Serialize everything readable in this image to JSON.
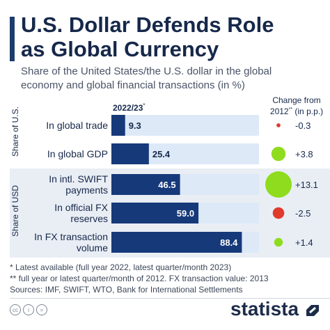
{
  "title_line1": "U.S. Dollar Defends Role",
  "title_line2": "as Global Currency",
  "subtitle_line1": "Share of the United States/the U.S. dollar in the global",
  "subtitle_line2": "economy and global financial transactions (in %)",
  "column_header_year": "2022/23",
  "column_header_year_mark": "*",
  "change_header_line1": "Change from",
  "change_header_line2": "2012",
  "change_header_mark": "**",
  "change_header_unit": " (in p.p.)",
  "group_labels": [
    "Share of U.S.",
    "Share of USD"
  ],
  "footnotes": [
    "*   Latest available (full year 2022, latest quarter/month 2023)",
    "** full year or latest quarter/month of 2012. FX transaction value: 2013",
    "Sources: IMF, SWIFT, WTO, Bank for International Settlements"
  ],
  "logo_text": "statista",
  "cc_icons": [
    "cc",
    "i",
    "="
  ],
  "colors": {
    "bar": "#16397a",
    "track": "#dde9f7",
    "positive": "#8fdc1e",
    "negative": "#e03a2c",
    "group_bg": "#e9eef5"
  },
  "chart_data": {
    "type": "bar",
    "orientation": "horizontal",
    "xlim": [
      0,
      100
    ],
    "categories": [
      "In global trade",
      "In global GDP",
      "In intl. SWIFT payments",
      "In official FX reserves",
      "In FX transaction volume"
    ],
    "category_lines": [
      [
        "In global trade"
      ],
      [
        "In global GDP"
      ],
      [
        "In intl. SWIFT",
        "payments"
      ],
      [
        "In official FX",
        "reserves"
      ],
      [
        "In FX transaction",
        "volume"
      ]
    ],
    "values": [
      9.3,
      25.4,
      46.5,
      59.0,
      88.4
    ],
    "value_labels": [
      "9.3",
      "25.4",
      "46.5",
      "59.0",
      "88.4"
    ],
    "groups": [
      "Share of U.S.",
      "Share of U.S.",
      "Share of USD",
      "Share of USD",
      "Share of USD"
    ],
    "change": [
      -0.3,
      3.8,
      13.1,
      -2.5,
      1.4
    ],
    "change_labels": [
      "-0.3",
      "+3.8",
      "+13.1",
      "-2.5",
      "+1.4"
    ]
  }
}
